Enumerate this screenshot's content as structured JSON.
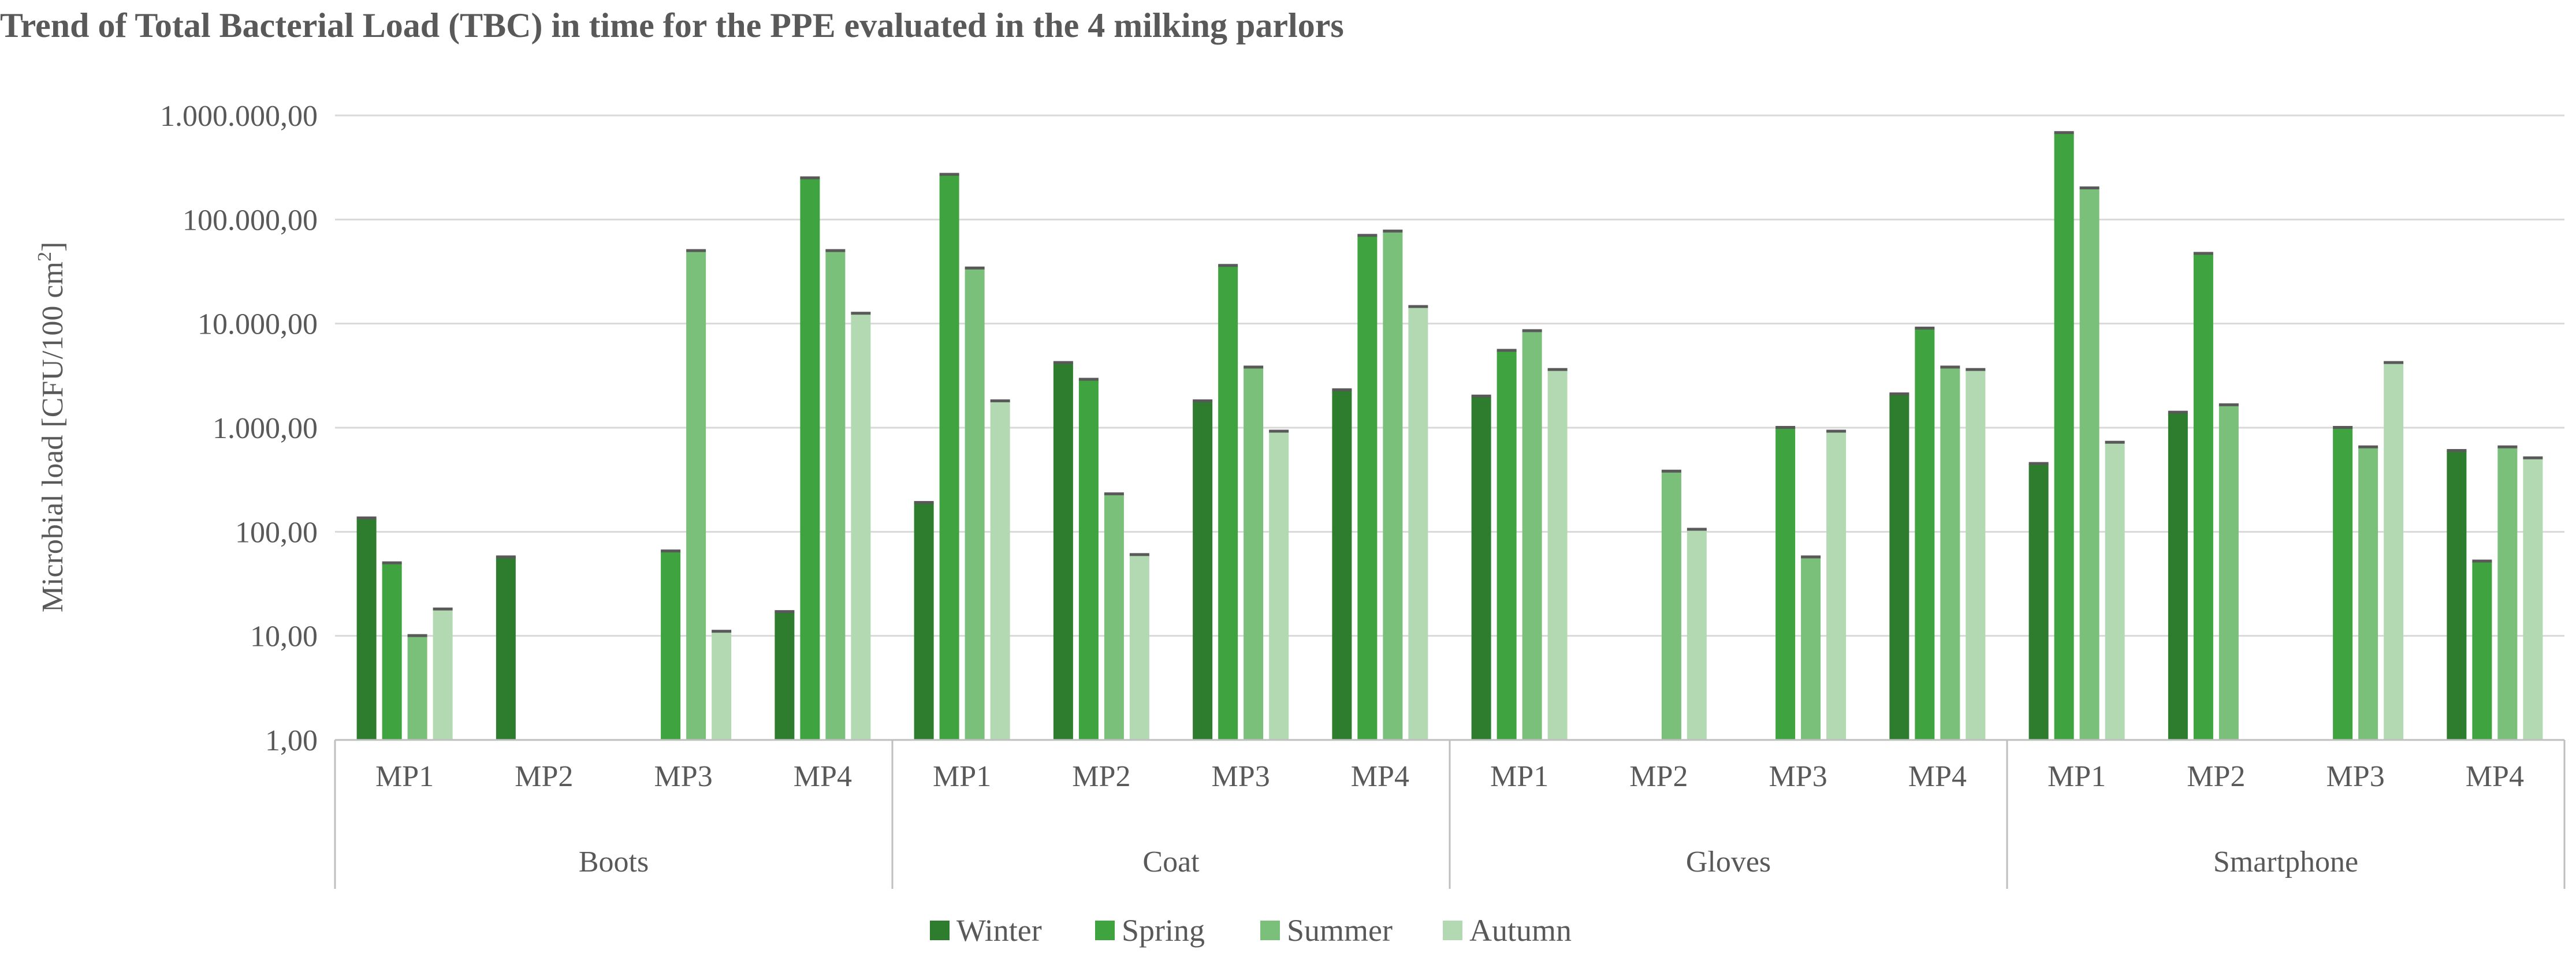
{
  "chart_data": {
    "type": "bar",
    "title": "Trend of Total Bacterial Load (TBC) in time for the PPE evaluated in the 4 milking parlors",
    "ylabel_main": "Microbial load [CFU/100 cm",
    "ylabel_sup": "2",
    "ylabel_close": "]",
    "yscale": "log",
    "ylim": [
      1,
      1000000
    ],
    "yticks": [
      {
        "value": 1,
        "label": "1,00"
      },
      {
        "value": 10,
        "label": "10,00"
      },
      {
        "value": 100,
        "label": "100,00"
      },
      {
        "value": 1000,
        "label": "1.000,00"
      },
      {
        "value": 10000,
        "label": "10.000,00"
      },
      {
        "value": 100000,
        "label": "100.000,00"
      },
      {
        "value": 1000000,
        "label": "1.000.000,00"
      }
    ],
    "grid": true,
    "legend_position": "bottom",
    "groups": [
      {
        "name": "Boots",
        "categories": [
          {
            "name": "MP1",
            "values": [
              135,
              50,
              10,
              18
            ]
          },
          {
            "name": "MP2",
            "values": [
              57,
              null,
              null,
              null
            ]
          },
          {
            "name": "MP3",
            "values": [
              null,
              65,
              50000,
              11
            ]
          },
          {
            "name": "MP4",
            "values": [
              17,
              250000,
              50000,
              12500
            ]
          }
        ]
      },
      {
        "name": "Coat",
        "categories": [
          {
            "name": "MP1",
            "values": [
              190,
              270000,
              34000,
              1800
            ]
          },
          {
            "name": "MP2",
            "values": [
              4200,
              2900,
              230,
              60
            ]
          },
          {
            "name": "MP3",
            "values": [
              1800,
              36000,
              3800,
              920
            ]
          },
          {
            "name": "MP4",
            "values": [
              2300,
              70000,
              77000,
              14500
            ]
          }
        ]
      },
      {
        "name": "Gloves",
        "categories": [
          {
            "name": "MP1",
            "values": [
              2000,
              5500,
              8500,
              3600
            ]
          },
          {
            "name": "MP2",
            "values": [
              null,
              null,
              380,
              105
            ]
          },
          {
            "name": "MP3",
            "values": [
              null,
              1000,
              57,
              920
            ]
          },
          {
            "name": "MP4",
            "values": [
              2100,
              9000,
              3800,
              3600
            ]
          }
        ]
      },
      {
        "name": "Smartphone",
        "categories": [
          {
            "name": "MP1",
            "values": [
              450,
              680000,
              200000,
              720
            ]
          },
          {
            "name": "MP2",
            "values": [
              1400,
              47000,
              1650,
              null
            ]
          },
          {
            "name": "MP3",
            "values": [
              null,
              1000,
              650,
              4200
            ]
          },
          {
            "name": "MP4",
            "values": [
              600,
              52,
              650,
              510
            ]
          }
        ]
      }
    ],
    "series": [
      {
        "name": "Winter",
        "color": "#2e7d2e"
      },
      {
        "name": "Spring",
        "color": "#3fa33f"
      },
      {
        "name": "Summer",
        "color": "#7abf7a"
      },
      {
        "name": "Autumn",
        "color": "#b3d9b3"
      }
    ],
    "bar_cap_color": "#595959",
    "grid_color": "#d9d9d9"
  }
}
